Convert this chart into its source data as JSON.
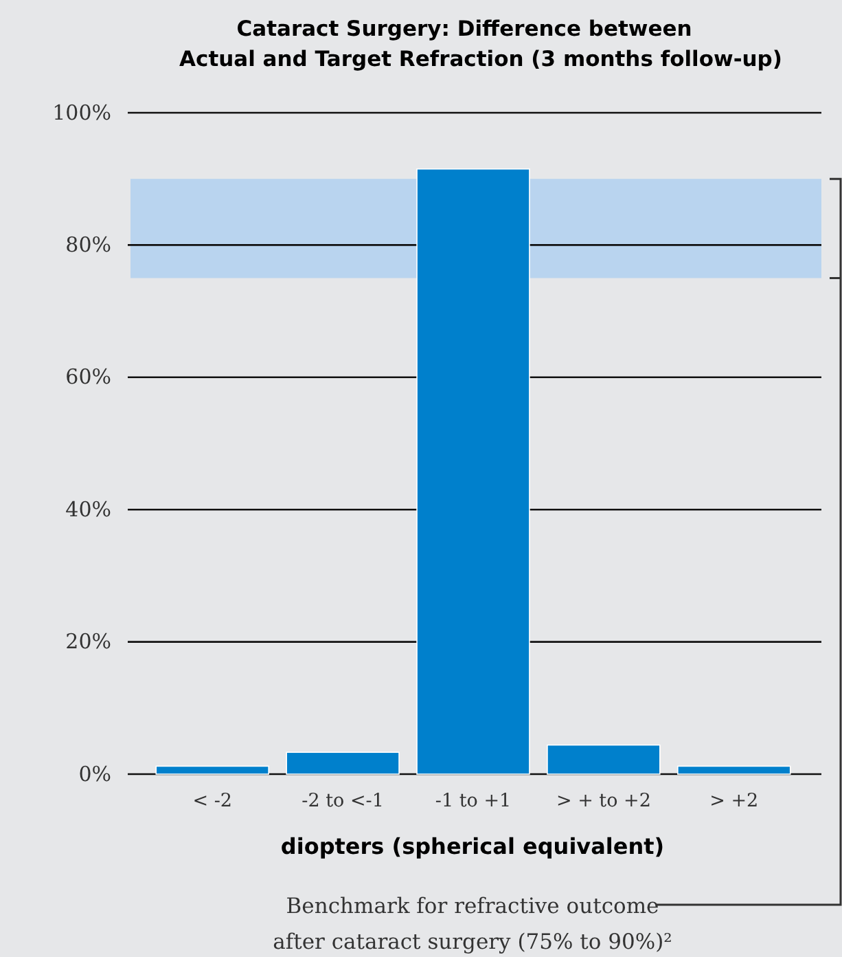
{
  "chart_data": {
    "type": "bar",
    "title": "Cataract Surgery: Difference between\nActual and Target Refraction (3 months follow-up)",
    "xlabel": "diopters (spherical equivalent)",
    "categories": [
      "< -2",
      "-2 to <-1",
      "-1 to +1",
      "> + to +2",
      "> +2"
    ],
    "values": [
      1.2,
      3.3,
      91.5,
      4.4,
      1.2
    ],
    "color": "#0080cc",
    "ylim": [
      0,
      100
    ],
    "yticks": [
      {
        "value": 0,
        "label": "0%"
      },
      {
        "value": 20,
        "label": "20%"
      },
      {
        "value": 40,
        "label": "40%"
      },
      {
        "value": 60,
        "label": "60%"
      },
      {
        "value": 80,
        "label": "80%"
      },
      {
        "value": 100,
        "label": "100%"
      }
    ],
    "grid": "y",
    "bands": [
      {
        "axis": "y",
        "from": 75,
        "to": 90,
        "label": "Benchmark for refractive outcome\nafter cataract surgery (75% to 90%)²",
        "color": "#b9d4ef"
      }
    ]
  }
}
